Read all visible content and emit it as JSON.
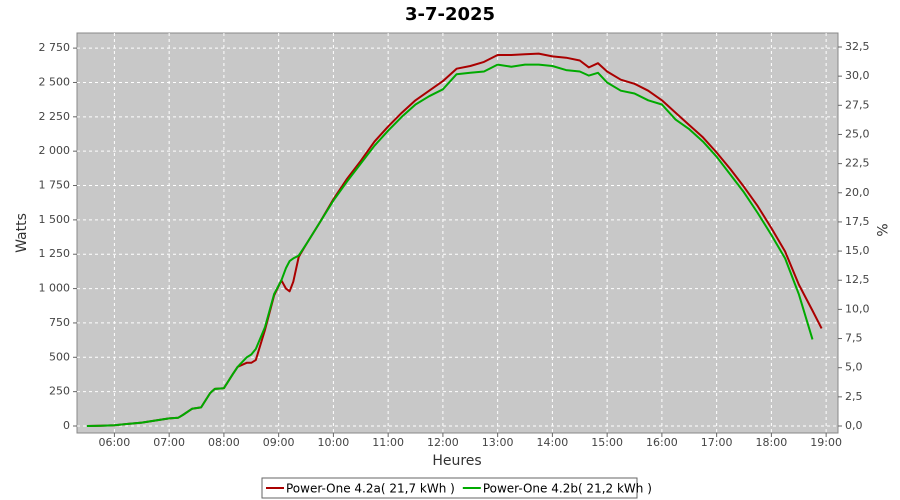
{
  "chart_data": {
    "type": "line",
    "title": "3-7-2025",
    "xlabel": "Heures",
    "ylabel": "Watts",
    "y2label": "%",
    "x": [
      "05:30",
      "05:45",
      "06:00",
      "06:15",
      "06:30",
      "06:45",
      "07:00",
      "07:10",
      "07:15",
      "07:25",
      "07:35",
      "07:45",
      "07:50",
      "08:00",
      "08:10",
      "08:15",
      "08:25",
      "08:30",
      "08:35",
      "08:45",
      "08:55",
      "09:03",
      "09:08",
      "09:12",
      "09:16",
      "09:22",
      "09:30",
      "09:45",
      "10:00",
      "10:15",
      "10:30",
      "10:45",
      "11:00",
      "11:15",
      "11:30",
      "11:45",
      "12:00",
      "12:15",
      "12:30",
      "12:45",
      "13:00",
      "13:15",
      "13:30",
      "13:45",
      "14:00",
      "14:15",
      "14:30",
      "14:40",
      "14:50",
      "15:00",
      "15:15",
      "15:30",
      "15:45",
      "16:00",
      "16:15",
      "16:30",
      "16:45",
      "17:00",
      "17:15",
      "17:30",
      "17:45",
      "18:00",
      "18:15",
      "18:30",
      "18:45",
      "18:55"
    ],
    "series": [
      {
        "name": "Power-One 4.2a( 21,7 kWh )",
        "color": "#aa0000",
        "values": [
          0,
          2,
          5,
          15,
          25,
          40,
          55,
          60,
          80,
          125,
          135,
          240,
          270,
          275,
          380,
          430,
          460,
          460,
          480,
          700,
          950,
          1060,
          1000,
          980,
          1050,
          1230,
          1320,
          1480,
          1650,
          1800,
          1930,
          2070,
          2180,
          2280,
          2370,
          2440,
          2510,
          2600,
          2620,
          2650,
          2700,
          2700,
          2705,
          2710,
          2690,
          2680,
          2660,
          2610,
          2640,
          2580,
          2520,
          2490,
          2440,
          2370,
          2280,
          2190,
          2100,
          1990,
          1870,
          1740,
          1600,
          1440,
          1270,
          1030,
          840,
          710
        ]
      },
      {
        "name": "Power-One 4.2b( 21,2 kWh )",
        "color": "#00aa00",
        "values": [
          0,
          2,
          5,
          15,
          25,
          40,
          55,
          60,
          80,
          125,
          135,
          240,
          270,
          275,
          380,
          430,
          500,
          520,
          560,
          720,
          960,
          1060,
          1150,
          1200,
          1220,
          1240,
          1320,
          1480,
          1640,
          1780,
          1910,
          2040,
          2150,
          2250,
          2340,
          2400,
          2450,
          2560,
          2570,
          2580,
          2630,
          2615,
          2630,
          2630,
          2620,
          2590,
          2580,
          2550,
          2570,
          2500,
          2440,
          2420,
          2370,
          2340,
          2230,
          2160,
          2070,
          1960,
          1830,
          1700,
          1550,
          1390,
          1220,
          960,
          630,
          null
        ]
      }
    ],
    "xlim": [
      "05:19",
      "19:13"
    ],
    "xticks": [
      "06:00",
      "07:00",
      "08:00",
      "09:00",
      "10:00",
      "11:00",
      "12:00",
      "13:00",
      "14:00",
      "15:00",
      "16:00",
      "17:00",
      "18:00",
      "19:00"
    ],
    "ylim": [
      -51,
      2860
    ],
    "yticks": [
      0,
      250,
      500,
      750,
      {
        "value": 1000,
        "label": "1 000"
      },
      {
        "value": 1250,
        "label": "1 250"
      },
      {
        "value": 1500,
        "label": "1 500"
      },
      {
        "value": 1750,
        "label": "1 750"
      },
      {
        "value": 2000,
        "label": "2 000"
      },
      {
        "value": 2250,
        "label": "2 250"
      },
      {
        "value": 2500,
        "label": "2 500"
      },
      {
        "value": 2750,
        "label": "2 750"
      }
    ],
    "y2lim": [
      -0.6,
      33.7
    ],
    "y2ticks": [
      {
        "value": 0,
        "label": "0,0"
      },
      {
        "value": 2.5,
        "label": "2,5"
      },
      {
        "value": 5,
        "label": "5,0"
      },
      {
        "value": 7.5,
        "label": "7,5"
      },
      {
        "value": 10,
        "label": "10,0"
      },
      {
        "value": 12.5,
        "label": "12,5"
      },
      {
        "value": 15,
        "label": "15,0"
      },
      {
        "value": 17.5,
        "label": "17,5"
      },
      {
        "value": 20,
        "label": "20,0"
      },
      {
        "value": 22.5,
        "label": "22,5"
      },
      {
        "value": 25,
        "label": "25,0"
      },
      {
        "value": 27.5,
        "label": "27,5"
      },
      {
        "value": 30,
        "label": "30,0"
      },
      {
        "value": 32.5,
        "label": "32,5"
      }
    ],
    "grid": true,
    "legend": "bottom"
  }
}
